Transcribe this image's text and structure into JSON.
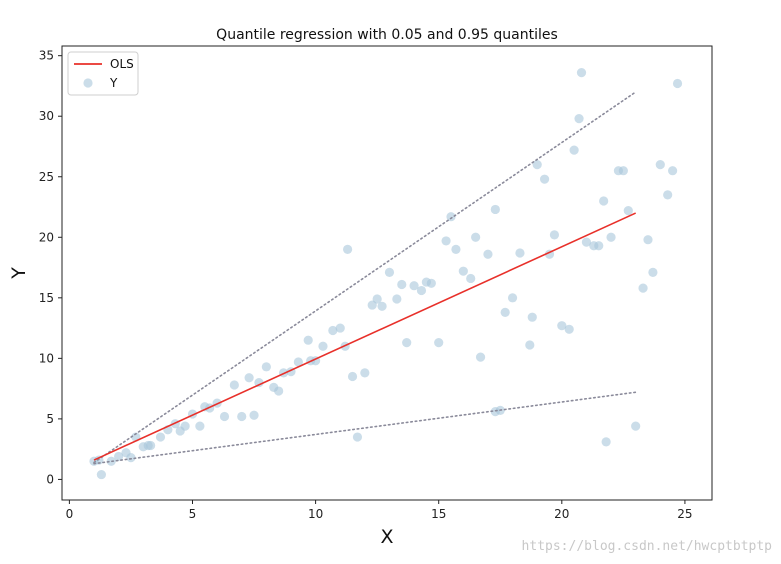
{
  "chart_data": {
    "type": "scatter",
    "title": "Quantile regression with 0.05 and 0.95 quantiles",
    "xlabel": "X",
    "ylabel": "Y",
    "xlim": [
      -0.3,
      26.1
    ],
    "ylim": [
      -1.7,
      35.8
    ],
    "xticks": [
      0,
      5,
      10,
      15,
      20,
      25
    ],
    "yticks": [
      0,
      5,
      10,
      15,
      20,
      25,
      30,
      35
    ],
    "grid": false,
    "legend_position": "top-left",
    "legend": [
      {
        "label": "OLS",
        "kind": "line",
        "color": "#e8302a"
      },
      {
        "label": "Y",
        "kind": "marker",
        "color": "#a9c6da"
      }
    ],
    "ols_line": {
      "x": [
        1,
        23
      ],
      "y": [
        1.6,
        22.0
      ],
      "color": "#e8302a"
    },
    "quantile_lines": [
      {
        "quantile": 0.95,
        "x": [
          1,
          23
        ],
        "y": [
          1.4,
          32.0
        ],
        "color": "#8a8a9a"
      },
      {
        "quantile": 0.05,
        "x": [
          1,
          23
        ],
        "y": [
          1.3,
          7.2
        ],
        "color": "#8a8a9a"
      }
    ],
    "points": {
      "x": [
        1.0,
        1.3,
        1.7,
        2.0,
        2.3,
        2.7,
        3.0,
        3.3,
        3.7,
        4.0,
        4.3,
        4.7,
        5.0,
        5.3,
        5.7,
        6.0,
        6.3,
        6.7,
        7.0,
        7.3,
        7.7,
        8.0,
        8.3,
        8.7,
        9.0,
        9.3,
        9.7,
        10.0,
        10.3,
        10.7,
        11.0,
        11.3,
        11.7,
        12.0,
        12.3,
        12.7,
        13.0,
        13.3,
        13.7,
        14.0,
        14.3,
        14.7,
        15.0,
        15.3,
        15.7,
        16.0,
        16.3,
        16.7,
        17.0,
        17.3,
        17.7,
        18.0,
        18.3,
        18.7,
        19.0,
        19.3,
        19.7,
        20.0,
        20.3,
        20.7,
        21.0,
        21.3,
        21.7,
        22.0,
        22.3,
        22.7,
        23.0,
        23.3,
        23.7,
        24.0,
        24.3,
        24.7,
        1.2,
        2.5,
        3.2,
        4.5,
        5.5,
        7.5,
        8.5,
        9.8,
        11.5,
        12.5,
        13.5,
        14.5,
        15.5,
        16.5,
        17.5,
        18.8,
        19.5,
        20.5,
        21.5,
        22.5,
        23.5,
        24.5,
        11.2,
        20.8,
        17.3,
        21.8
      ],
      "y": [
        1.5,
        0.4,
        1.5,
        1.9,
        2.2,
        3.5,
        2.7,
        2.8,
        3.5,
        4.1,
        4.6,
        4.4,
        5.4,
        4.4,
        5.9,
        6.3,
        5.2,
        7.8,
        5.2,
        8.4,
        8.0,
        9.3,
        7.6,
        8.8,
        8.9,
        9.7,
        11.5,
        9.8,
        11.0,
        12.3,
        12.5,
        19.0,
        3.5,
        8.8,
        14.4,
        14.3,
        17.1,
        14.9,
        11.3,
        16.0,
        15.6,
        16.2,
        11.3,
        19.7,
        19.0,
        17.2,
        16.6,
        10.1,
        18.6,
        22.3,
        13.8,
        15.0,
        18.7,
        11.1,
        26.0,
        24.8,
        20.2,
        12.7,
        12.4,
        29.8,
        19.6,
        19.3,
        23.0,
        20.0,
        25.5,
        22.2,
        4.4,
        15.8,
        17.1,
        26.0,
        23.5,
        32.7,
        1.6,
        1.8,
        2.8,
        4.0,
        6.0,
        5.3,
        7.3,
        9.8,
        8.5,
        14.9,
        16.1,
        16.3,
        21.7,
        20.0,
        5.7,
        13.4,
        18.6,
        27.2,
        19.3,
        25.5,
        19.8,
        25.5,
        11.0,
        33.6,
        5.6,
        3.1
      ],
      "color": "#a9c6da"
    }
  },
  "watermark": "https://blog.csdn.net/hwcptbtptp"
}
